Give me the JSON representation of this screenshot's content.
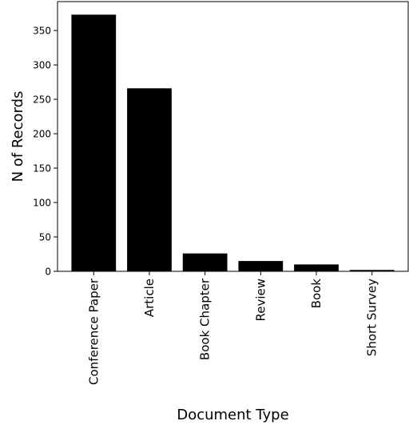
{
  "chart_data": {
    "type": "bar",
    "categories": [
      "Conference Paper",
      "Article",
      "Book Chapter",
      "Review",
      "Book",
      "Short Survey"
    ],
    "values": [
      373,
      266,
      26,
      15,
      10,
      2
    ],
    "xlabel": "Document Type",
    "ylabel": "N of Records",
    "ylim": [
      0,
      392
    ],
    "yticks": [
      0,
      50,
      100,
      150,
      200,
      250,
      300,
      350
    ],
    "grid": false,
    "bar_color": "#000000"
  }
}
